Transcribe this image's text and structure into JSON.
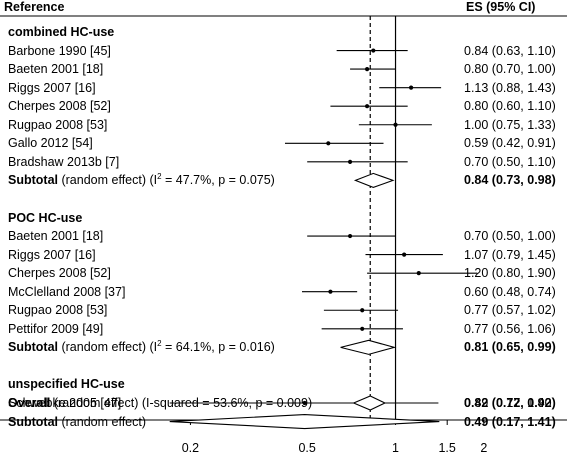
{
  "headers": {
    "left": "Reference",
    "right": "ES (95% CI)"
  },
  "groups": [
    {
      "title": "combined HC-use",
      "studies": [
        {
          "label": "Barbone 1990 [45]",
          "ci_text": "0.84 (0.63, 1.10)",
          "est": 0.84,
          "lo": 0.63,
          "hi": 1.1
        },
        {
          "label": "Baeten 2001 [18]",
          "ci_text": "0.80 (0.70, 1.00)",
          "est": 0.8,
          "lo": 0.7,
          "hi": 1.0
        },
        {
          "label": "Riggs 2007 [16]",
          "ci_text": "1.13 (0.88, 1.43)",
          "est": 1.13,
          "lo": 0.88,
          "hi": 1.43
        },
        {
          "label": "Cherpes 2008 [52]",
          "ci_text": "0.80 (0.60, 1.10)",
          "est": 0.8,
          "lo": 0.6,
          "hi": 1.1
        },
        {
          "label": "Rugpao 2008 [53]",
          "ci_text": "1.00 (0.75, 1.33)",
          "est": 1.0,
          "lo": 0.75,
          "hi": 1.33
        },
        {
          "label": "Gallo 2012 [54]",
          "ci_text": "0.59 (0.42, 0.91)",
          "est": 0.59,
          "lo": 0.42,
          "hi": 0.91
        },
        {
          "label": "Bradshaw 2013b [7]",
          "ci_text": "0.70 (0.50, 1.10)",
          "est": 0.7,
          "lo": 0.5,
          "hi": 1.1
        }
      ],
      "subtotal": {
        "label": "Subtotal",
        "detail_pre": " (random effect) (I",
        "detail_sup": "2",
        "detail_post": " = 47.7%, p = 0.075)",
        "ci_text": "0.84 (0.73, 0.98)",
        "est": 0.84,
        "lo": 0.73,
        "hi": 0.98
      }
    },
    {
      "title": "POC HC-use",
      "studies": [
        {
          "label": "Baeten 2001 [18]",
          "ci_text": "0.70 (0.50, 1.00)",
          "est": 0.7,
          "lo": 0.5,
          "hi": 1.0
        },
        {
          "label": "Riggs 2007 [16]",
          "ci_text": "1.07 (0.79, 1.45)",
          "est": 1.07,
          "lo": 0.79,
          "hi": 1.45
        },
        {
          "label": "Cherpes 2008 [52]",
          "ci_text": "1.20 (0.80, 1.90)",
          "est": 1.2,
          "lo": 0.8,
          "hi": 1.9
        },
        {
          "label": "McClelland 2008 [37]",
          "ci_text": "0.60 (0.48, 0.74)",
          "est": 0.6,
          "lo": 0.48,
          "hi": 0.74
        },
        {
          "label": "Rugpao 2008 [53]",
          "ci_text": "0.77 (0.57, 1.02)",
          "est": 0.77,
          "lo": 0.57,
          "hi": 1.02
        },
        {
          "label": "Pettifor 2009 [49]",
          "ci_text": "0.77 (0.56, 1.06)",
          "est": 0.77,
          "lo": 0.56,
          "hi": 1.06
        }
      ],
      "subtotal": {
        "label": "Subtotal",
        "detail_pre": " (random effect) (I",
        "detail_sup": "2",
        "detail_post": " = 64.1%, p = 0.016)",
        "ci_text": "0.81 (0.65, 0.99)",
        "est": 0.81,
        "lo": 0.65,
        "hi": 0.99
      }
    },
    {
      "title": "unspecified HC-use",
      "studies": [
        {
          "label": "Schwebke 2005 [47]",
          "ci_text": "0.49 (0.17, 1.40)",
          "est": 0.49,
          "lo": 0.17,
          "hi": 1.4
        }
      ],
      "subtotal": {
        "label": "Subtotal",
        "detail_pre": " (random effect)",
        "detail_sup": "",
        "detail_post": "",
        "ci_text": "0.49 (0.17, 1.41)",
        "est": 0.49,
        "lo": 0.17,
        "hi": 1.41
      }
    }
  ],
  "overall": {
    "label": "Overall",
    "detail": "  (random effect) (I-squared = 53.6%, p = 0.009)",
    "ci_text": "0.82 (0.72, 0.92)",
    "est": 0.82,
    "lo": 0.72,
    "hi": 0.92
  },
  "chart_data": {
    "type": "forest",
    "x_scale": "log",
    "xlim": [
      0.16,
      2.2
    ],
    "x_ticks": [
      0.2,
      0.5,
      1,
      1.5,
      2
    ],
    "x_tick_labels": [
      "0.2",
      "0.5",
      "1",
      "1.5",
      "2"
    ],
    "null_line": 1,
    "overall_line": 0.82,
    "arrow_left_clipped": [
      "Schwebke 2005 [47]",
      "Subtotal (unspecified HC-use)"
    ]
  }
}
